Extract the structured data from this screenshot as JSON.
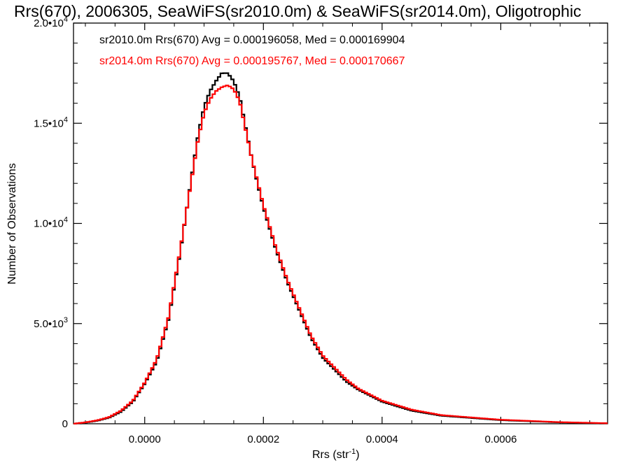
{
  "chart_data": {
    "type": "line",
    "title": "Rrs(670), 2006305, SeaWiFS(sr2010.0m) & SeaWiFS(sr2014.0m), Oligotrophic",
    "xlabel": "Rrs (str",
    "xlabel_sup": "-1",
    "xlabel_end": ")",
    "ylabel": "Number of Observations",
    "xlim": [
      -0.00012,
      0.00078
    ],
    "ylim": [
      0,
      20000
    ],
    "x_ticks": [
      0.0,
      0.0002,
      0.0004,
      0.0006
    ],
    "x_tick_labels": [
      "0.0000",
      "0.0002",
      "0.0004",
      "0.0006"
    ],
    "y_ticks": [
      0,
      5000,
      10000,
      15000,
      20000
    ],
    "y_tick_labels": [
      {
        "base": "0",
        "exp": ""
      },
      {
        "base": "5.0•10",
        "exp": "3"
      },
      {
        "base": "1.0•10",
        "exp": "4"
      },
      {
        "base": "1.5•10",
        "exp": "4"
      },
      {
        "base": "2.0•10",
        "exp": "4"
      }
    ],
    "grid": false,
    "legend_position": "top-left",
    "series": [
      {
        "name": "sr2010.0m Rrs(670) Avg = 0.000196058, Med = 0.000169904",
        "color": "#000000",
        "x": [
          -0.00012,
          -0.0001,
          -8e-05,
          -6e-05,
          -4e-05,
          -2e-05,
          0.0,
          2e-05,
          4e-05,
          6e-05,
          8e-05,
          9e-05,
          0.0001,
          0.00011,
          0.00012,
          0.00013,
          0.00014,
          0.00015,
          0.00016,
          0.00017,
          0.00018,
          0.00019,
          0.0002,
          0.00022,
          0.00024,
          0.00026,
          0.00028,
          0.0003,
          0.00032,
          0.00034,
          0.00036,
          0.0004,
          0.00045,
          0.0005,
          0.0006,
          0.0007,
          0.00078
        ],
        "y": [
          0,
          60,
          150,
          300,
          600,
          1100,
          2000,
          3100,
          5200,
          8600,
          12500,
          14400,
          15800,
          16600,
          17100,
          17500,
          17500,
          17100,
          16300,
          14800,
          13300,
          12000,
          10800,
          8800,
          7100,
          5700,
          4300,
          3300,
          2700,
          2100,
          1700,
          1100,
          650,
          400,
          180,
          70,
          20
        ]
      },
      {
        "name": "sr2014.0m Rrs(670) Avg = 0.000195767, Med = 0.000170667",
        "color": "#ff0000",
        "x": [
          -0.00012,
          -0.0001,
          -8e-05,
          -6e-05,
          -4e-05,
          -2e-05,
          0.0,
          2e-05,
          4e-05,
          6e-05,
          8e-05,
          9e-05,
          0.0001,
          0.00011,
          0.00012,
          0.00013,
          0.00014,
          0.00015,
          0.00016,
          0.00017,
          0.00018,
          0.00019,
          0.0002,
          0.00022,
          0.00024,
          0.00026,
          0.00028,
          0.0003,
          0.00032,
          0.00034,
          0.00036,
          0.0004,
          0.00045,
          0.0005,
          0.0006,
          0.0007,
          0.00078
        ],
        "y": [
          0,
          70,
          170,
          330,
          650,
          1150,
          2050,
          3200,
          5300,
          8700,
          12400,
          14200,
          15500,
          16200,
          16600,
          16800,
          16900,
          16700,
          16100,
          14700,
          13300,
          12100,
          10900,
          8900,
          7200,
          5800,
          4400,
          3400,
          2800,
          2200,
          1750,
          1150,
          700,
          430,
          200,
          80,
          25
        ]
      }
    ]
  }
}
